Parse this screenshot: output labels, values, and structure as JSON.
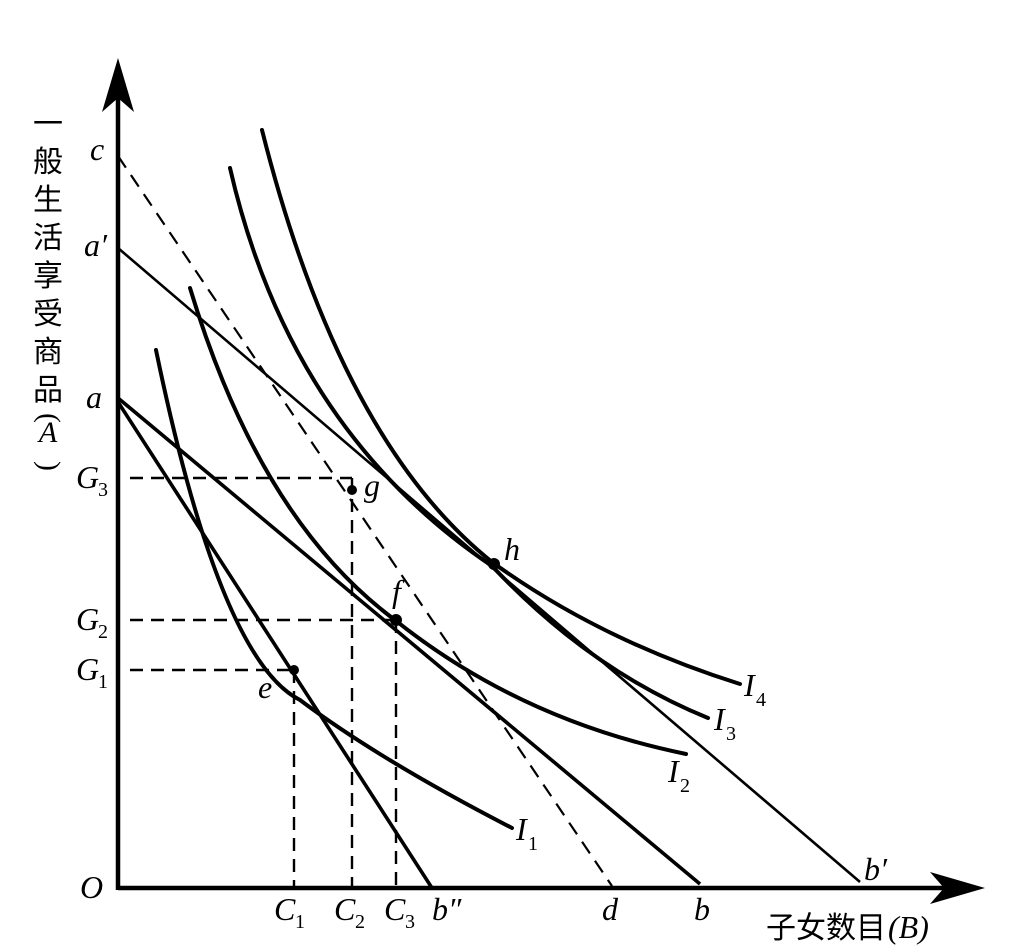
{
  "axes": {
    "y_label_chars": [
      "一",
      "般",
      "生",
      "活",
      "享",
      "受",
      "商",
      "品",
      "(",
      "A",
      ")"
    ],
    "x_label": "子女数目",
    "x_label_var": "(B)",
    "origin": "O"
  },
  "y_ticks": {
    "c": "c",
    "a_prime": "a′",
    "a": "a",
    "G3": "G",
    "G3_sub": "3",
    "G2": "G",
    "G2_sub": "2",
    "G1": "G",
    "G1_sub": "1"
  },
  "x_ticks": {
    "C1": "C",
    "C1_sub": "1",
    "C2": "C",
    "C2_sub": "2",
    "C3": "C",
    "C3_sub": "3",
    "b_dprime": "b″",
    "d": "d",
    "b": "b",
    "b_prime": "b′"
  },
  "points": {
    "e": "e",
    "f": "f",
    "g": "g",
    "h": "h"
  },
  "curves": {
    "I1": "I",
    "I1_sub": "1",
    "I2": "I",
    "I2_sub": "2",
    "I3": "I",
    "I3_sub": "3",
    "I4": "I",
    "I4_sub": "4"
  }
}
